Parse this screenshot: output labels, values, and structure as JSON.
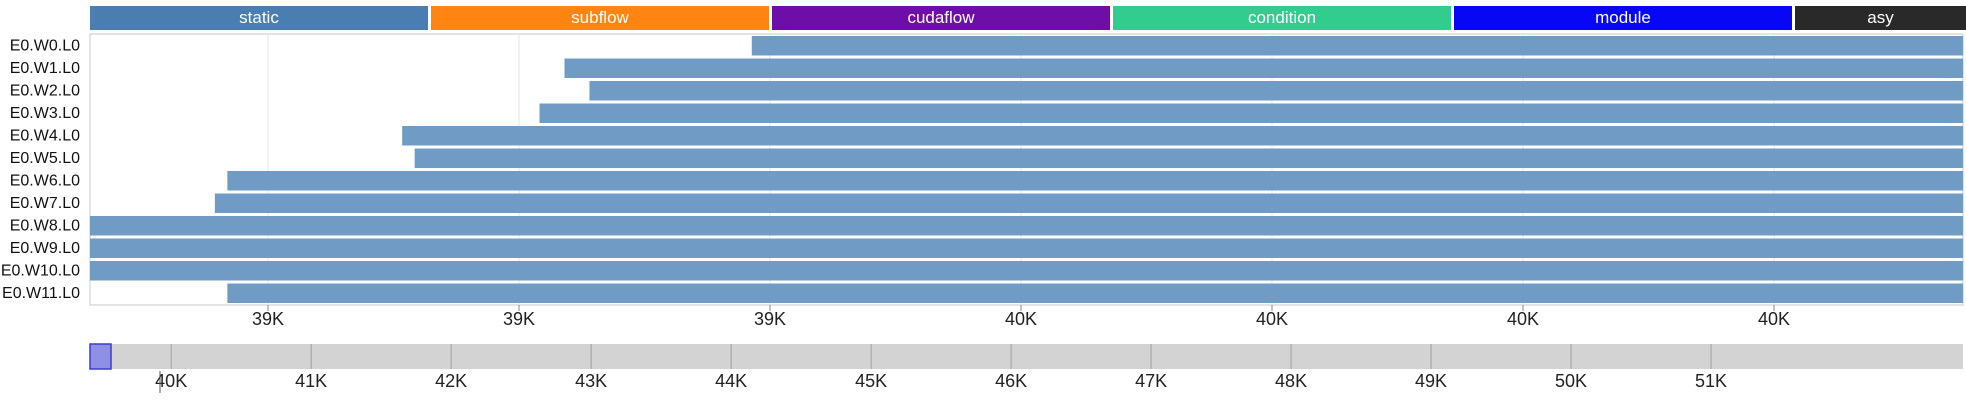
{
  "legend": [
    {
      "label": "static",
      "color": "#4a7eb0"
    },
    {
      "label": "subflow",
      "color": "#ff8411"
    },
    {
      "label": "cudaflow",
      "color": "#6e0ea8"
    },
    {
      "label": "condition",
      "color": "#33cc8f"
    },
    {
      "label": "module",
      "color": "#0707f5"
    },
    {
      "label": "asy",
      "color": "#292929"
    }
  ],
  "chart_data": {
    "type": "bar",
    "orientation": "horizontal",
    "bar_color": "#6f9bc4",
    "categories": [
      "E0.W0.L0",
      "E0.W1.L0",
      "E0.W2.L0",
      "E0.W3.L0",
      "E0.W4.L0",
      "E0.W5.L0",
      "E0.W6.L0",
      "E0.W7.L0",
      "E0.W8.L0",
      "E0.W9.L0",
      "E0.W10.L0",
      "E0.W11.L0"
    ],
    "x_tick_labels": [
      "39K",
      "39K",
      "39K",
      "40K",
      "40K",
      "40K",
      "40K"
    ],
    "xlim": [
      39200,
      39950
    ],
    "grid": true,
    "bar_starts": [
      39465,
      39390,
      39400,
      39380,
      39325,
      39330,
      39255,
      39250,
      39200,
      39200,
      39200,
      39255
    ],
    "bar_ends": [
      39950,
      39950,
      39950,
      39950,
      39950,
      39950,
      39950,
      39950,
      39950,
      39950,
      39950,
      39950
    ]
  },
  "overview": {
    "tick_labels": [
      "40K",
      "41K",
      "42K",
      "43K",
      "44K",
      "45K",
      "46K",
      "47K",
      "48K",
      "49K",
      "50K",
      "51K"
    ],
    "tick_values": [
      40000,
      41000,
      42000,
      43000,
      44000,
      45000,
      46000,
      47000,
      48000,
      49000,
      50000,
      51000
    ],
    "xlim": [
      39420,
      52800
    ],
    "brush": [
      39420,
      39570
    ]
  }
}
